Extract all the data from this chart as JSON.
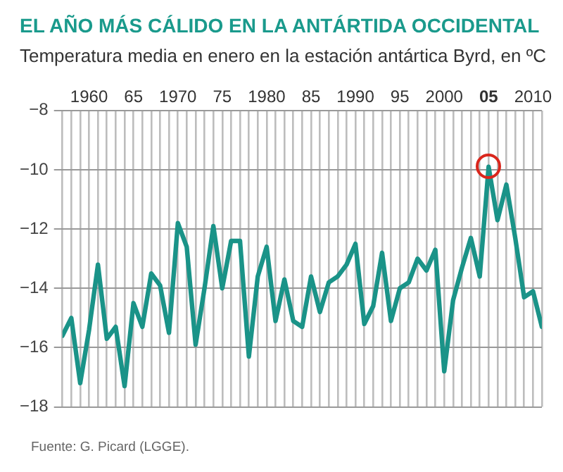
{
  "chart_data": {
    "type": "line",
    "title": "EL AÑO MÁS CÁLIDO EN LA ANTÁRTIDA OCCIDENTAL",
    "subtitle": "Temperatura media en enero en la estación antártica Byrd, en ºC",
    "x": [
      1957,
      1958,
      1959,
      1960,
      1961,
      1962,
      1963,
      1964,
      1965,
      1966,
      1967,
      1968,
      1969,
      1970,
      1971,
      1972,
      1973,
      1974,
      1975,
      1976,
      1977,
      1978,
      1979,
      1980,
      1981,
      1982,
      1983,
      1984,
      1985,
      1986,
      1987,
      1988,
      1989,
      1990,
      1991,
      1992,
      1993,
      1994,
      1995,
      1996,
      1997,
      1998,
      1999,
      2000,
      2001,
      2002,
      2003,
      2004,
      2005,
      2006,
      2007,
      2008,
      2009,
      2010,
      2011
    ],
    "series": [
      {
        "color": "#1a9388",
        "values": [
          -15.6,
          -15.0,
          -17.2,
          -15.4,
          -13.2,
          -15.7,
          -15.3,
          -17.3,
          -14.5,
          -15.3,
          -13.5,
          -13.9,
          -15.5,
          -11.8,
          -12.6,
          -15.9,
          -14.0,
          -11.9,
          -14.0,
          -12.4,
          -12.4,
          -16.3,
          -13.6,
          -12.6,
          -15.1,
          -13.7,
          -15.1,
          -15.3,
          -13.6,
          -14.8,
          -13.8,
          -13.6,
          -13.2,
          -12.5,
          -15.2,
          -14.6,
          -12.8,
          -15.1,
          -14.0,
          -13.8,
          -13.0,
          -13.4,
          -12.7,
          -16.8,
          -14.4,
          -13.3,
          -12.3,
          -13.6,
          -9.9,
          -11.7,
          -10.5,
          -12.3,
          -14.3,
          -14.1,
          -15.3
        ]
      }
    ],
    "xlim": [
      1957,
      2011
    ],
    "xticks": [
      {
        "value": 1957,
        "label": null
      },
      {
        "value": 1958,
        "label": null
      },
      {
        "value": 1959,
        "label": null
      },
      {
        "value": 1960,
        "label": "1960"
      },
      {
        "value": 1961,
        "label": null
      },
      {
        "value": 1962,
        "label": null
      },
      {
        "value": 1963,
        "label": null
      },
      {
        "value": 1964,
        "label": null
      },
      {
        "value": 1965,
        "label": "65"
      },
      {
        "value": 1966,
        "label": null
      },
      {
        "value": 1967,
        "label": null
      },
      {
        "value": 1968,
        "label": null
      },
      {
        "value": 1969,
        "label": null
      },
      {
        "value": 1970,
        "label": "1970"
      },
      {
        "value": 1971,
        "label": null
      },
      {
        "value": 1972,
        "label": null
      },
      {
        "value": 1973,
        "label": null
      },
      {
        "value": 1974,
        "label": null
      },
      {
        "value": 1975,
        "label": "75"
      },
      {
        "value": 1976,
        "label": null
      },
      {
        "value": 1977,
        "label": null
      },
      {
        "value": 1978,
        "label": null
      },
      {
        "value": 1979,
        "label": null
      },
      {
        "value": 1980,
        "label": "1980"
      },
      {
        "value": 1981,
        "label": null
      },
      {
        "value": 1982,
        "label": null
      },
      {
        "value": 1983,
        "label": null
      },
      {
        "value": 1984,
        "label": null
      },
      {
        "value": 1985,
        "label": "85"
      },
      {
        "value": 1986,
        "label": null
      },
      {
        "value": 1987,
        "label": null
      },
      {
        "value": 1988,
        "label": null
      },
      {
        "value": 1989,
        "label": null
      },
      {
        "value": 1990,
        "label": "1990"
      },
      {
        "value": 1991,
        "label": null
      },
      {
        "value": 1992,
        "label": null
      },
      {
        "value": 1993,
        "label": null
      },
      {
        "value": 1994,
        "label": null
      },
      {
        "value": 1995,
        "label": "95"
      },
      {
        "value": 1996,
        "label": null
      },
      {
        "value": 1997,
        "label": null
      },
      {
        "value": 1998,
        "label": null
      },
      {
        "value": 1999,
        "label": null
      },
      {
        "value": 2000,
        "label": "2000"
      },
      {
        "value": 2001,
        "label": null
      },
      {
        "value": 2002,
        "label": null
      },
      {
        "value": 2003,
        "label": null
      },
      {
        "value": 2004,
        "label": null
      },
      {
        "value": 2005,
        "label": "05"
      },
      {
        "value": 2006,
        "label": null
      },
      {
        "value": 2007,
        "label": null
      },
      {
        "value": 2008,
        "label": null
      },
      {
        "value": 2009,
        "label": null
      },
      {
        "value": 2010,
        "label": "2010"
      },
      {
        "value": 2011,
        "label": null
      }
    ],
    "ylim": [
      -18,
      -8
    ],
    "yticks": [
      {
        "value": -8,
        "label": "−8"
      },
      {
        "value": -10,
        "label": "−10"
      },
      {
        "value": -12,
        "label": "−12"
      },
      {
        "value": -14,
        "label": "−14"
      },
      {
        "value": -16,
        "label": "−16"
      },
      {
        "value": -18,
        "label": "−18"
      }
    ],
    "grid": true,
    "legend": false,
    "marker": "none",
    "line_style": "solid",
    "annotations": [
      "Fuente: G. Picard (LGGE)."
    ]
  }
}
